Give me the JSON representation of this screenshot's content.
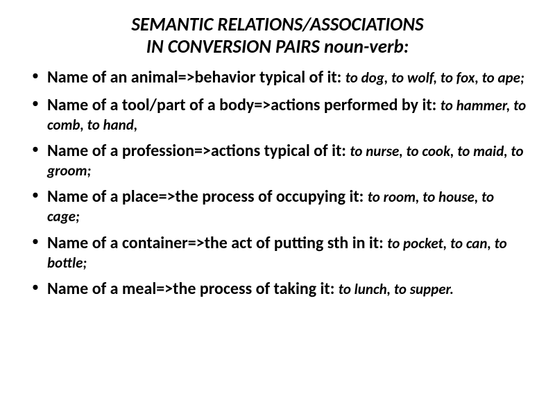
{
  "slide": {
    "title": {
      "line1": "SEMANTIC RELATIONS/ASSOCIATIONS",
      "line2": "IN CONVERSION PAIRS  noun-verb:",
      "fontsize": 27,
      "color": "#000000"
    },
    "bullets": [
      {
        "lead": "Name of an animal=>behavior typical of it: ",
        "examples": "to dog, to wolf, to fox, to ape;"
      },
      {
        "lead": "Name of a tool/part of a body=>actions performed by it: ",
        "examples": "to hammer, to comb, to hand,"
      },
      {
        "lead": "Name of a profession=>actions typical of it: ",
        "examples": "to nurse, to cook, to maid, to groom;"
      },
      {
        "lead": "Name of a place=>the process of occupying it: ",
        "examples": "to room, to house, to cage;"
      },
      {
        "lead": "Name of a container=>the act of putting sth in it: ",
        "examples": "to pocket, to can, to bottle;"
      },
      {
        "lead": "Name of a meal=>the process of taking it: ",
        "examples": "to lunch, to supper."
      }
    ],
    "body_fontsize_lead": 24,
    "body_fontsize_examples": 21,
    "background_color": "#ffffff",
    "text_color": "#000000"
  }
}
